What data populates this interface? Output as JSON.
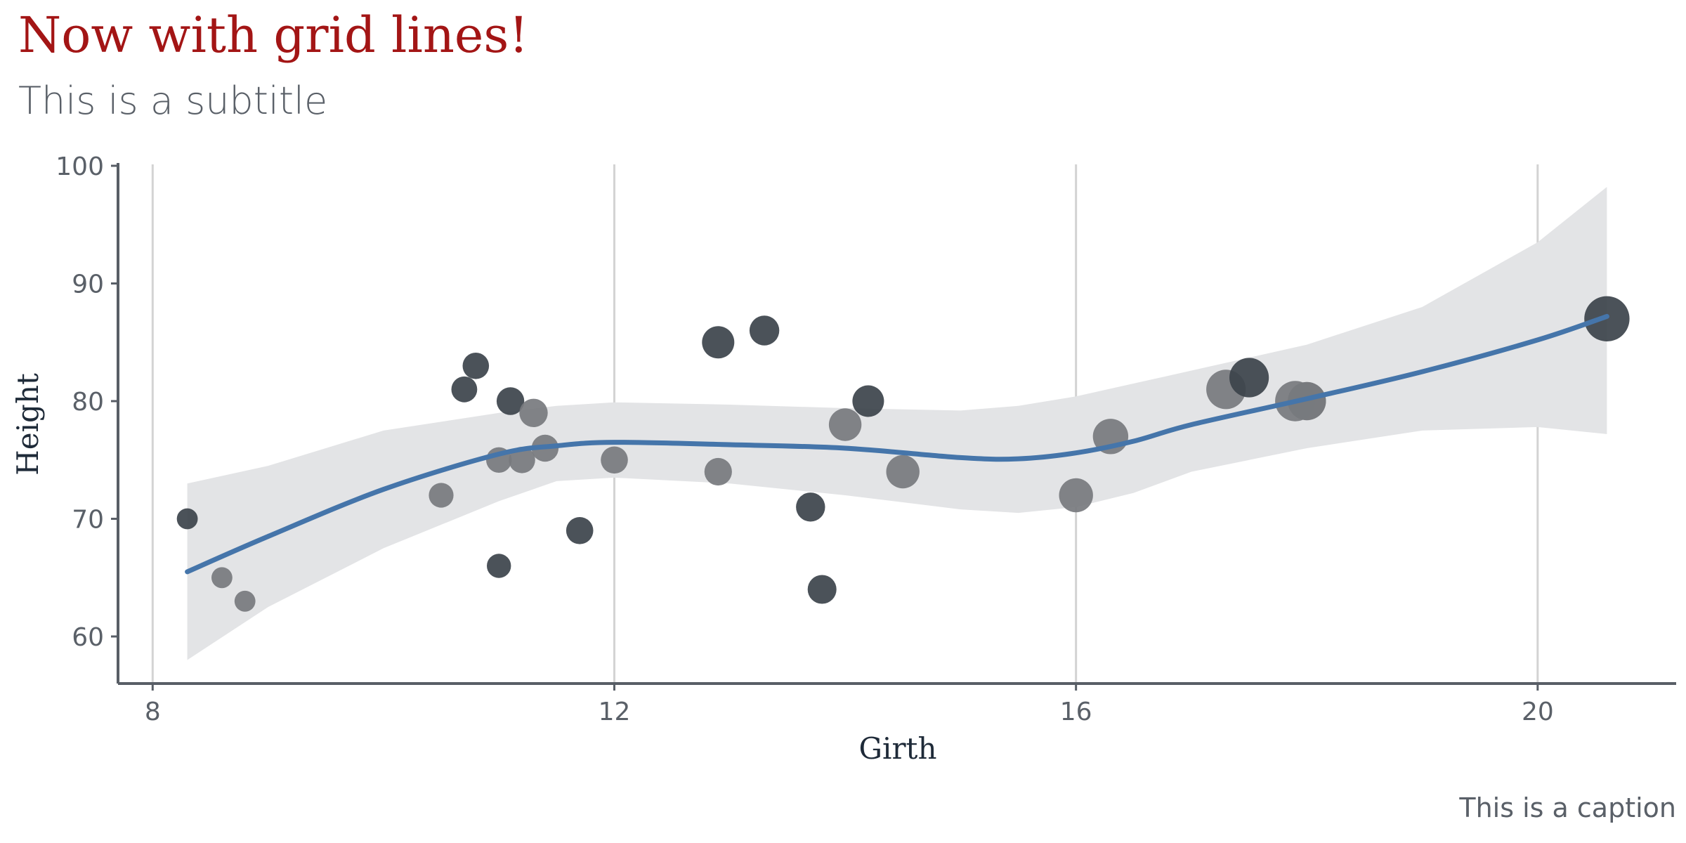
{
  "chart_data": {
    "type": "scatter",
    "title": "Now with grid lines!",
    "subtitle": "This is a subtitle",
    "caption": "This is a caption",
    "xlabel": "Girth",
    "ylabel": "Height",
    "xlim": [
      7.7,
      21.2
    ],
    "ylim": [
      56,
      100
    ],
    "xticks": [
      8,
      12,
      16,
      20
    ],
    "yticks": [
      60,
      70,
      80,
      90,
      100
    ],
    "grid": "vertical major lines",
    "legend": "none",
    "colors": {
      "point_dark": "#3c434b",
      "point_light": "#777a7e",
      "smooth_line": "#4575aa",
      "confidence_band": "#e3e4e6",
      "grid": "#d3d3d3",
      "axis": "#585e66"
    },
    "points": [
      {
        "x": 8.3,
        "y": 70,
        "size": 10.3,
        "shade": "dark"
      },
      {
        "x": 8.6,
        "y": 65,
        "size": 10.3,
        "shade": "light"
      },
      {
        "x": 8.8,
        "y": 63,
        "size": 10.2,
        "shade": "light"
      },
      {
        "x": 10.5,
        "y": 72,
        "size": 16.4,
        "shade": "light"
      },
      {
        "x": 10.7,
        "y": 81,
        "size": 18.8,
        "shade": "dark"
      },
      {
        "x": 10.8,
        "y": 83,
        "size": 19.7,
        "shade": "dark"
      },
      {
        "x": 11.0,
        "y": 66,
        "size": 15.6,
        "shade": "dark"
      },
      {
        "x": 11.0,
        "y": 75,
        "size": 18.2,
        "shade": "light"
      },
      {
        "x": 11.1,
        "y": 80,
        "size": 22.6,
        "shade": "dark"
      },
      {
        "x": 11.2,
        "y": 75,
        "size": 19.9,
        "shade": "light"
      },
      {
        "x": 11.3,
        "y": 79,
        "size": 24.2,
        "shade": "light"
      },
      {
        "x": 11.4,
        "y": 76,
        "size": 21.0,
        "shade": "light"
      },
      {
        "x": 11.7,
        "y": 69,
        "size": 21.4,
        "shade": "dark"
      },
      {
        "x": 12.0,
        "y": 75,
        "size": 21.3,
        "shade": "light"
      },
      {
        "x": 12.9,
        "y": 74,
        "size": 22.2,
        "shade": "light"
      },
      {
        "x": 12.9,
        "y": 85,
        "size": 33.8,
        "shade": "dark"
      },
      {
        "x": 13.3,
        "y": 86,
        "size": 27.4,
        "shade": "dark"
      },
      {
        "x": 13.7,
        "y": 71,
        "size": 25.7,
        "shade": "dark"
      },
      {
        "x": 13.8,
        "y": 64,
        "size": 24.9,
        "shade": "dark"
      },
      {
        "x": 14.0,
        "y": 78,
        "size": 34.5,
        "shade": "light"
      },
      {
        "x": 14.2,
        "y": 80,
        "size": 31.7,
        "shade": "dark"
      },
      {
        "x": 14.5,
        "y": 74,
        "size": 36.3,
        "shade": "light"
      },
      {
        "x": 16.0,
        "y": 72,
        "size": 38.3,
        "shade": "light"
      },
      {
        "x": 16.3,
        "y": 77,
        "size": 42.6,
        "shade": "light"
      },
      {
        "x": 17.3,
        "y": 81,
        "size": 55.4,
        "shade": "light"
      },
      {
        "x": 17.5,
        "y": 82,
        "size": 55.7,
        "shade": "dark"
      },
      {
        "x": 17.9,
        "y": 80,
        "size": 58.3,
        "shade": "light"
      },
      {
        "x": 18.0,
        "y": 80,
        "size": 51.5,
        "shade": "light"
      },
      {
        "x": 18.0,
        "y": 80,
        "size": 51.0,
        "shade": "light"
      },
      {
        "x": 20.6,
        "y": 87,
        "size": 77.0,
        "shade": "dark"
      }
    ],
    "smooth": {
      "x": [
        8.3,
        9,
        10,
        11,
        11.5,
        12,
        13,
        14,
        15,
        15.5,
        16,
        16.5,
        17,
        18,
        19,
        20,
        20.6
      ],
      "y": [
        65.5,
        68.5,
        72.5,
        75.5,
        76.2,
        76.5,
        76.3,
        76,
        75.2,
        75.1,
        75.6,
        76.6,
        78,
        80.2,
        82.5,
        85.2,
        87.2
      ],
      "lower": [
        58.0,
        62.5,
        67.5,
        71.5,
        73.2,
        73.5,
        73.0,
        72.0,
        70.8,
        70.5,
        71.0,
        72.2,
        74.0,
        76.0,
        77.5,
        77.8,
        77.2
      ],
      "upper": [
        73.0,
        74.5,
        77.5,
        79.0,
        79.6,
        79.9,
        79.7,
        79.4,
        79.2,
        79.6,
        80.4,
        81.5,
        82.6,
        84.8,
        88.0,
        93.5,
        98.2
      ]
    }
  }
}
